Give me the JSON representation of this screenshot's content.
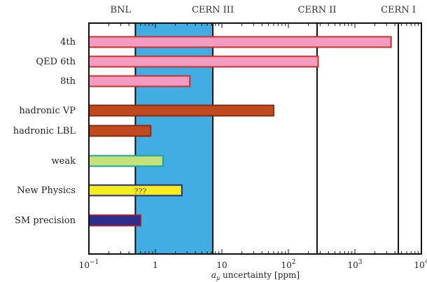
{
  "chart_data": {
    "type": "bar",
    "orientation": "horizontal",
    "xscale": "log",
    "xlim": [
      0.1,
      10000
    ],
    "xlabel_symbol": "a",
    "xlabel_sub": "μ",
    "xlabel_rest": " uncertainty [ppm]",
    "xticks": [
      {
        "value": 0.1,
        "base": "10",
        "exp": "−1"
      },
      {
        "value": 1,
        "base": "1",
        "exp": ""
      },
      {
        "value": 10,
        "base": "10",
        "exp": ""
      },
      {
        "value": 100,
        "base": "10",
        "exp": "2"
      },
      {
        "value": 1000,
        "base": "10",
        "exp": "3"
      },
      {
        "value": 10000,
        "base": "10",
        "exp": "4"
      }
    ],
    "reference_lines": [
      {
        "label": "BNL",
        "value": 0.5,
        "label_value": 0.3
      },
      {
        "label": "CERN III",
        "value": 7.3,
        "label_value": 7.3
      },
      {
        "label": "CERN II",
        "value": 270,
        "label_value": 270
      },
      {
        "label": "CERN I",
        "value": 4500,
        "label_value": 4500
      }
    ],
    "highlight_band": {
      "from": 0.5,
      "to": 7.3,
      "color": "#42ade3"
    },
    "categories": [
      "4th",
      "QED 6th",
      "8th",
      "hadronic VP",
      "hadronic LBL",
      "weak",
      "New Physics",
      "SM precision"
    ],
    "bars": [
      {
        "category": "4th",
        "value": 3500,
        "fill": "#f39bc0",
        "stroke": "#c8302a",
        "bar_label": ""
      },
      {
        "category": "QED 6th",
        "value": 280,
        "fill": "#f39bc0",
        "stroke": "#c8302a",
        "bar_label": ""
      },
      {
        "category": "8th",
        "value": 3.3,
        "fill": "#f39bc0",
        "stroke": "#c8302a",
        "bar_label": ""
      },
      {
        "category": "hadronic VP",
        "value": 60,
        "fill": "#c04a1e",
        "stroke": "#8a2a10",
        "bar_label": ""
      },
      {
        "category": "hadronic LBL",
        "value": 0.85,
        "fill": "#c04a1e",
        "stroke": "#8a2a10",
        "bar_label": ""
      },
      {
        "category": "weak",
        "value": 1.3,
        "fill": "#c6e07a",
        "stroke": "#1aa59a",
        "bar_label": ""
      },
      {
        "category": "New Physics",
        "value": 2.5,
        "fill": "#f5ee1a",
        "stroke": "#2b2a7a",
        "bar_label": "???"
      },
      {
        "category": "SM precision",
        "value": 0.6,
        "fill": "#2b2e8c",
        "stroke": "#a01e2e",
        "bar_label": ""
      }
    ],
    "grid": false
  }
}
